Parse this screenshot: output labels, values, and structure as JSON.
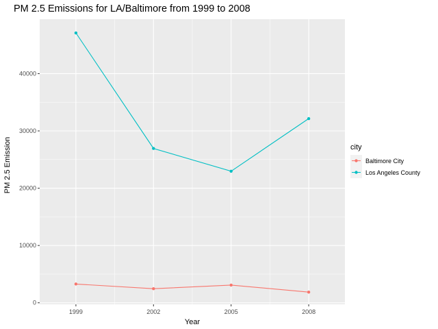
{
  "chart_data": {
    "type": "line",
    "title": "PM 2.5 Emissions for LA/Baltimore from 1999 to 2008",
    "xlabel": "Year",
    "ylabel": "PM 2.5 Emission",
    "x": [
      1999,
      2002,
      2005,
      2008
    ],
    "x_ticks": [
      "1999",
      "2002",
      "2005",
      "2008"
    ],
    "xlim": [
      1997.6,
      2009.4
    ],
    "ylim": [
      -270,
      49500
    ],
    "y_ticks": [
      0,
      10000,
      20000,
      30000,
      40000
    ],
    "y_tick_labels": [
      "0",
      "10000",
      "20000",
      "30000",
      "40000"
    ],
    "grid": true,
    "legend_title": "city",
    "legend_position": "right",
    "series": [
      {
        "name": "Baltimore City",
        "color": "#F8766D",
        "values": [
          3274,
          2454,
          3091,
          1862
        ]
      },
      {
        "name": "Los Angeles County",
        "color": "#00BFC4",
        "values": [
          47103,
          26940,
          22962,
          32150
        ]
      }
    ],
    "colors": {
      "panel": "#EBEBEB",
      "grid": "#FFFFFF",
      "tick": "#333333"
    }
  }
}
